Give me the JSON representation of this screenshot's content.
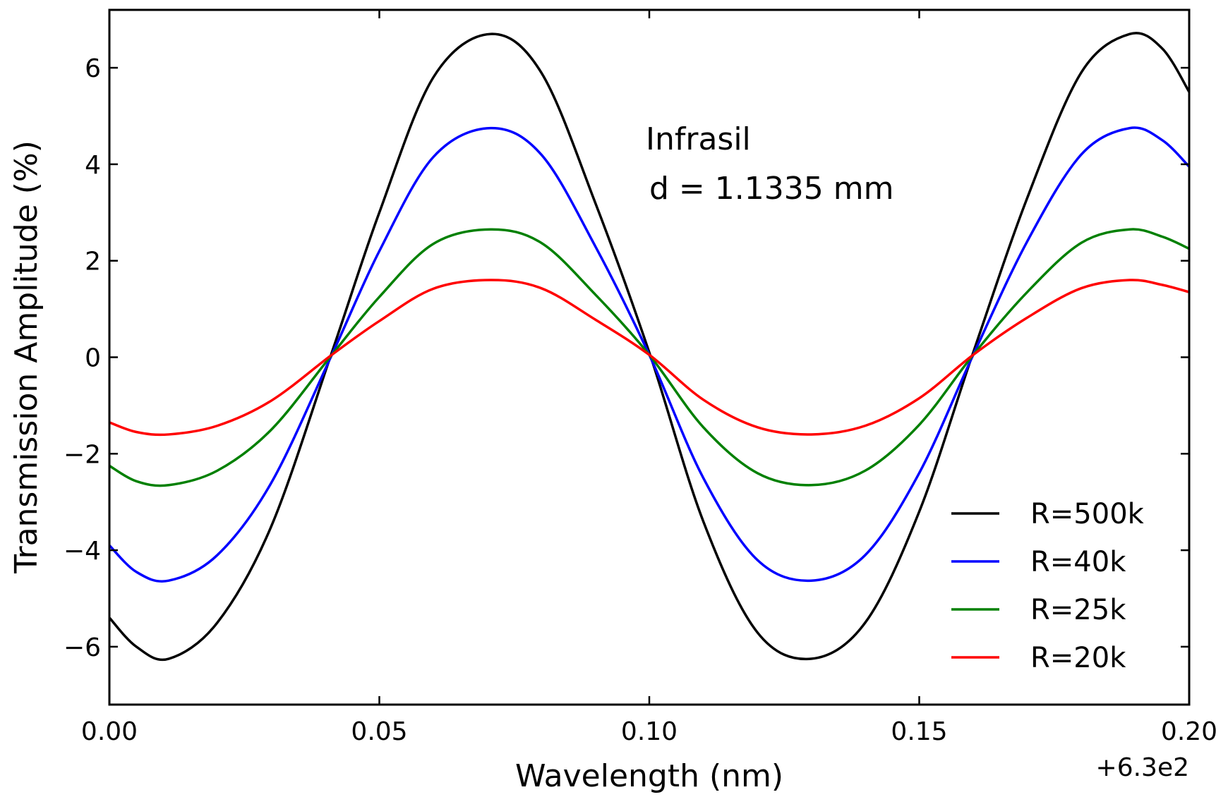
{
  "chart_data": {
    "type": "line",
    "title": "",
    "xlabel": "Wavelength (nm)",
    "ylabel": "Transmission Amplitude (%)",
    "x_offset_label": "+6.3e2",
    "xlim": [
      0.0,
      0.2
    ],
    "ylim": [
      -7.2,
      7.2
    ],
    "xticks": [
      {
        "value": 0.0,
        "label": "0.00"
      },
      {
        "value": 0.05,
        "label": "0.05"
      },
      {
        "value": 0.1,
        "label": "0.10"
      },
      {
        "value": 0.15,
        "label": "0.15"
      },
      {
        "value": 0.2,
        "label": "0.20"
      }
    ],
    "yticks": [
      {
        "value": -6,
        "label": "−6"
      },
      {
        "value": -4,
        "label": "−4"
      },
      {
        "value": -2,
        "label": "−2"
      },
      {
        "value": 0,
        "label": "0"
      },
      {
        "value": 2,
        "label": "2"
      },
      {
        "value": 4,
        "label": "4"
      },
      {
        "value": 6,
        "label": "6"
      }
    ],
    "grid": false,
    "legend_position": "lower-right",
    "annotations": [
      "Infrasil",
      "d = 1.1335 mm"
    ],
    "x": [
      0.0,
      0.005,
      0.011,
      0.02,
      0.03,
      0.0412,
      0.05,
      0.06,
      0.0706,
      0.08,
      0.09,
      0.1,
      0.11,
      0.12,
      0.13,
      0.14,
      0.15,
      0.16,
      0.17,
      0.18,
      0.189,
      0.195,
      0.2
    ],
    "series": [
      {
        "name": "R=500k",
        "color": "#000000",
        "values": [
          -5.4,
          -6.0,
          -6.25,
          -5.5,
          -3.5,
          0.1,
          3.0,
          5.8,
          6.7,
          5.9,
          3.2,
          0.1,
          -3.4,
          -5.7,
          -6.25,
          -5.5,
          -3.2,
          0.1,
          3.3,
          5.9,
          6.7,
          6.4,
          5.5
        ]
      },
      {
        "name": "R=40k",
        "color": "#0000ff",
        "values": [
          -3.9,
          -4.45,
          -4.63,
          -4.1,
          -2.6,
          0.05,
          2.2,
          4.15,
          4.75,
          4.2,
          2.3,
          0.05,
          -2.5,
          -4.2,
          -4.63,
          -4.1,
          -2.4,
          0.05,
          2.4,
          4.2,
          4.75,
          4.5,
          3.95
        ]
      },
      {
        "name": "R=25k",
        "color": "#008000",
        "values": [
          -2.25,
          -2.57,
          -2.65,
          -2.35,
          -1.5,
          0.05,
          1.25,
          2.35,
          2.65,
          2.37,
          1.3,
          0.05,
          -1.45,
          -2.4,
          -2.65,
          -2.35,
          -1.4,
          0.05,
          1.35,
          2.37,
          2.65,
          2.5,
          2.25
        ]
      },
      {
        "name": "R=20k",
        "color": "#ff0000",
        "values": [
          -1.35,
          -1.55,
          -1.6,
          -1.42,
          -0.9,
          0.05,
          0.75,
          1.42,
          1.6,
          1.43,
          0.78,
          0.05,
          -0.88,
          -1.45,
          -1.6,
          -1.42,
          -0.85,
          0.05,
          0.82,
          1.43,
          1.6,
          1.5,
          1.35
        ]
      }
    ]
  }
}
